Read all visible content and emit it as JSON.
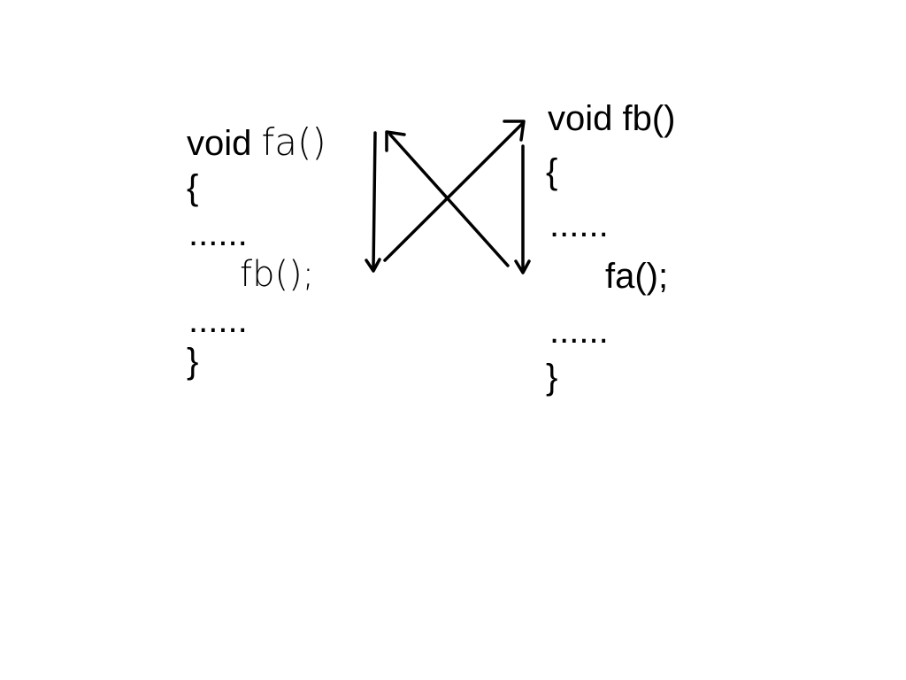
{
  "diagram": {
    "fa_block": {
      "signature_keyword": "void",
      "signature_name": "fa()",
      "open_brace": "{",
      "dots_before": "......",
      "call": "fb();",
      "dots_after": "......",
      "close_brace": "}"
    },
    "fb_block": {
      "signature": "void fb()",
      "open_brace": "{",
      "dots_before": "......",
      "call": "fa();",
      "dots_after": "......",
      "close_brace": "}"
    },
    "arrows": [
      {
        "from": "fa-signature",
        "to": "fb-call-in-fa",
        "direction": "down"
      },
      {
        "from": "fb-call-in-fa",
        "to": "fb-signature",
        "direction": "up-right"
      },
      {
        "from": "fb-signature",
        "to": "fa-call-in-fb",
        "direction": "down"
      },
      {
        "from": "fa-call-in-fb",
        "to": "fa-signature",
        "direction": "up-left"
      }
    ]
  }
}
